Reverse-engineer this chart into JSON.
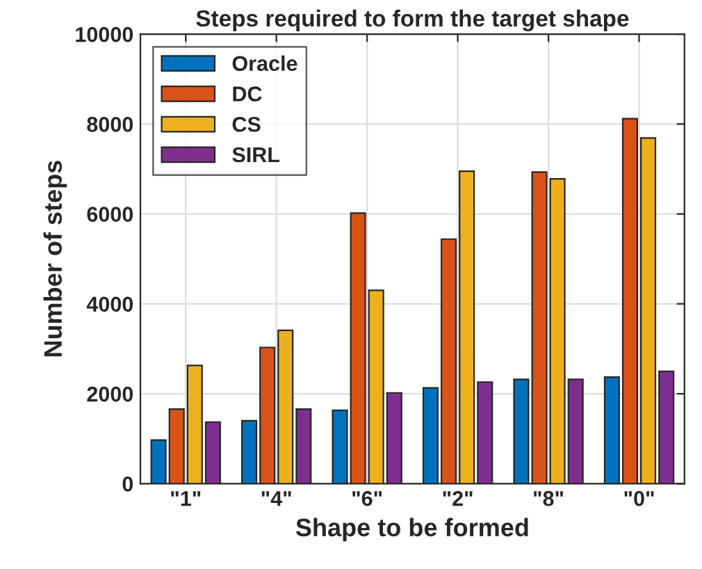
{
  "chart_data": {
    "type": "bar",
    "title": "Steps required to form the target shape",
    "xlabel": "Shape to be formed",
    "ylabel": "Number of steps",
    "categories": [
      "\"1\"",
      "\"4\"",
      "\"6\"",
      "\"2\"",
      "\"8\"",
      "\"0\""
    ],
    "series": [
      {
        "name": "Oracle",
        "color": "#0072bd",
        "values": [
          970,
          1400,
          1630,
          2130,
          2320,
          2370
        ]
      },
      {
        "name": "DC",
        "color": "#d95319",
        "values": [
          1660,
          3030,
          6020,
          5440,
          6930,
          8120
        ]
      },
      {
        "name": "CS",
        "color": "#edb120",
        "values": [
          2630,
          3410,
          4300,
          6950,
          6780,
          7690
        ]
      },
      {
        "name": "SIRL",
        "color": "#7e2f8e",
        "values": [
          1370,
          1660,
          2020,
          2260,
          2320,
          2500
        ]
      }
    ],
    "ylim": [
      0,
      10000
    ],
    "yticks": [
      0,
      2000,
      4000,
      6000,
      8000,
      10000
    ],
    "grid": true,
    "legend": "top left"
  }
}
